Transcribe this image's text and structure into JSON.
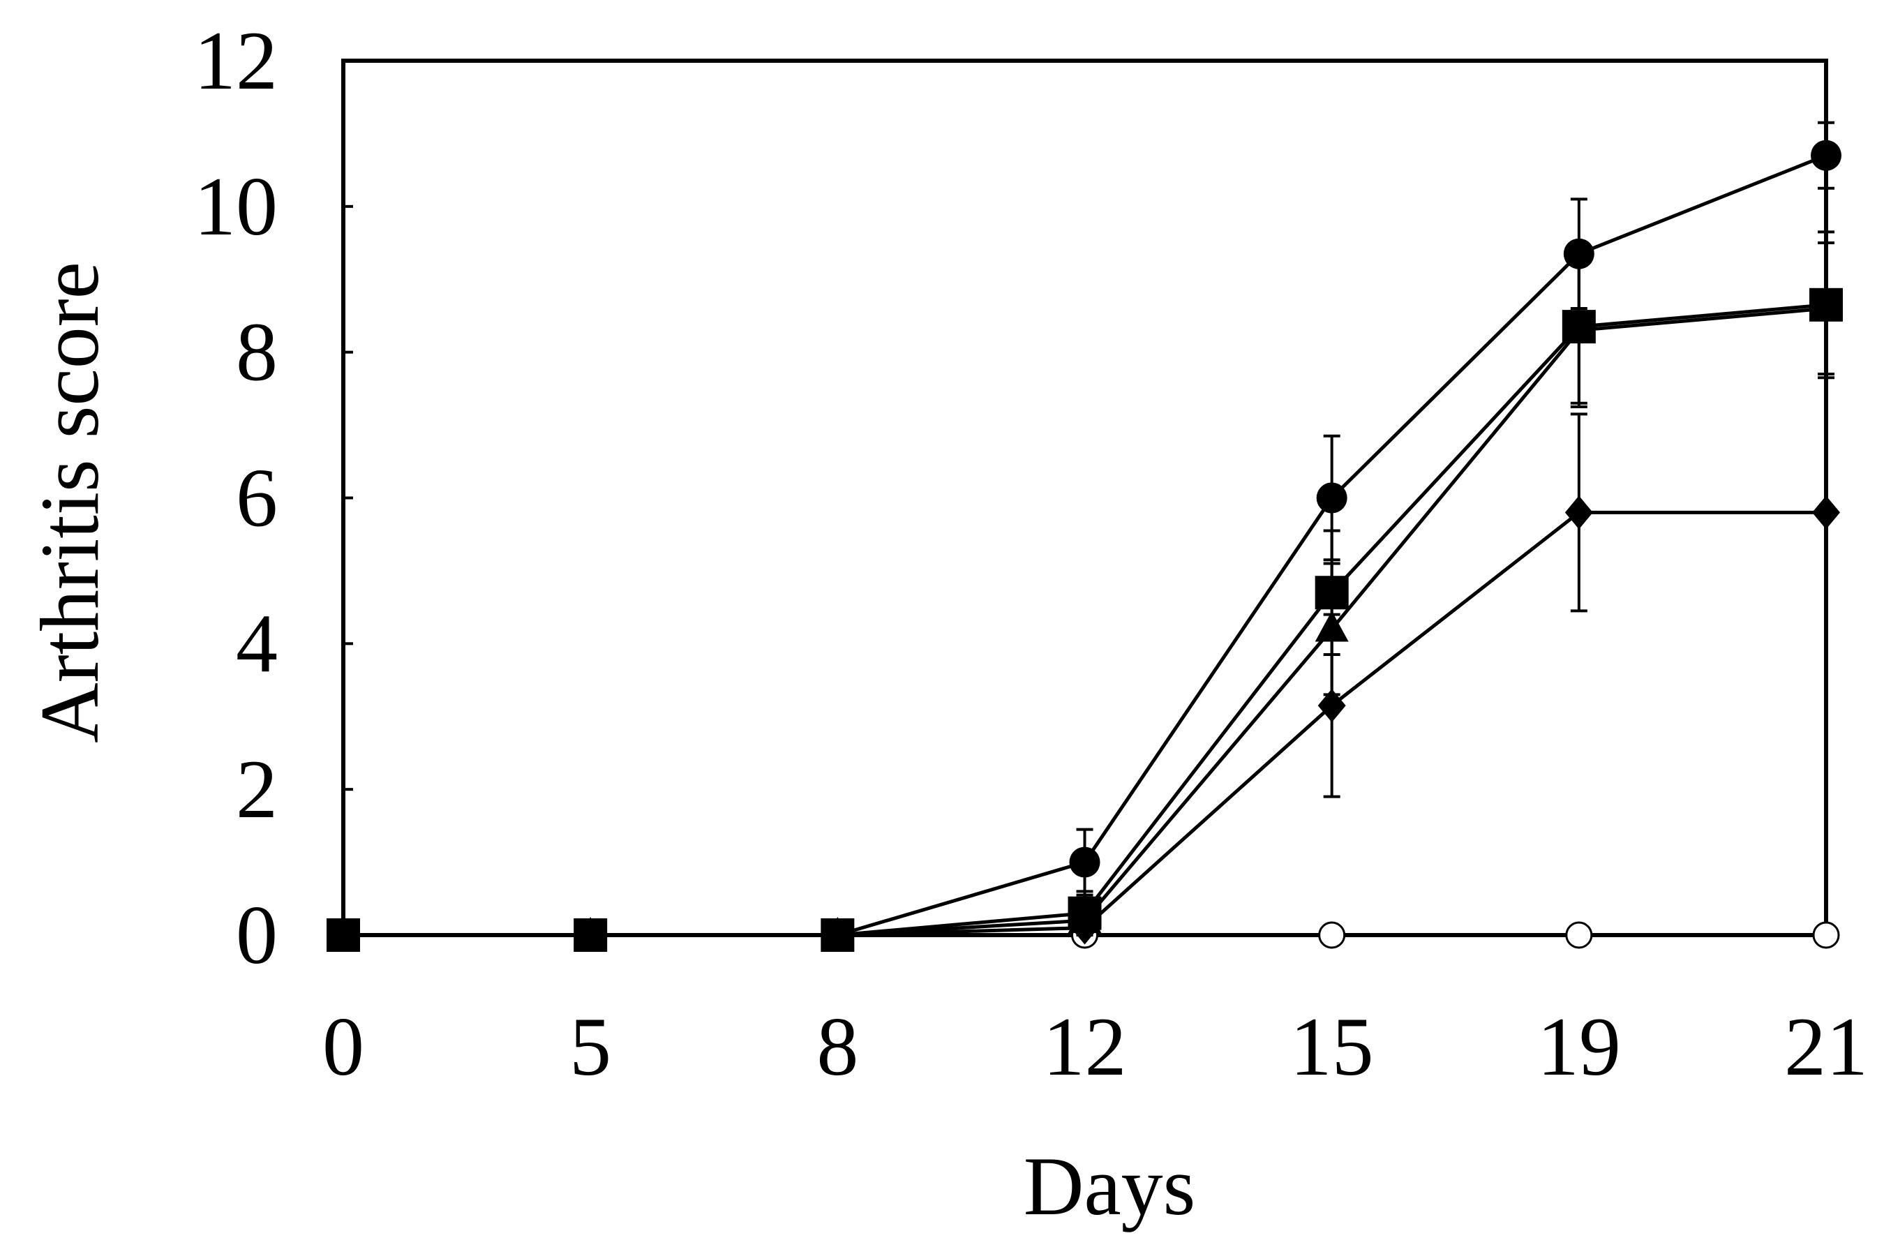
{
  "chart_data": {
    "type": "line",
    "title": "",
    "xlabel": "Days",
    "ylabel": "Arthritis score",
    "categories": [
      "0",
      "5",
      "8",
      "12",
      "15",
      "19",
      "21"
    ],
    "yticks": [
      "0",
      "2",
      "4",
      "6",
      "8",
      "10",
      "12"
    ],
    "ylim": [
      0,
      12
    ],
    "grid": false,
    "legend": "none",
    "series": [
      {
        "marker": "filled-circle",
        "values": [
          0,
          0,
          0,
          1.0,
          6.0,
          9.35,
          10.7
        ],
        "errors": [
          0,
          0,
          0,
          0.45,
          0.85,
          0.75,
          0.45
        ]
      },
      {
        "marker": "filled-square",
        "values": [
          0,
          0,
          0,
          0.3,
          4.7,
          8.35,
          8.65
        ],
        "errors": [
          0,
          0,
          0,
          0.3,
          0.85,
          1.1,
          1.0
        ]
      },
      {
        "marker": "filled-triangle",
        "values": [
          0,
          0,
          0,
          0.2,
          4.2,
          8.3,
          8.6
        ],
        "errors": [
          0,
          0,
          0,
          0.2,
          0.9,
          1.0,
          0.9
        ]
      },
      {
        "marker": "filled-diamond",
        "values": [
          0,
          0,
          0,
          0.1,
          3.15,
          5.8,
          5.8
        ],
        "errors": [
          0,
          0,
          0,
          0.1,
          1.25,
          1.35,
          0
        ]
      },
      {
        "marker": "open-circle",
        "values": [
          0,
          0,
          0,
          0,
          0,
          0,
          0
        ],
        "errors": [
          0,
          0,
          0,
          0,
          0,
          0,
          0
        ]
      }
    ]
  }
}
